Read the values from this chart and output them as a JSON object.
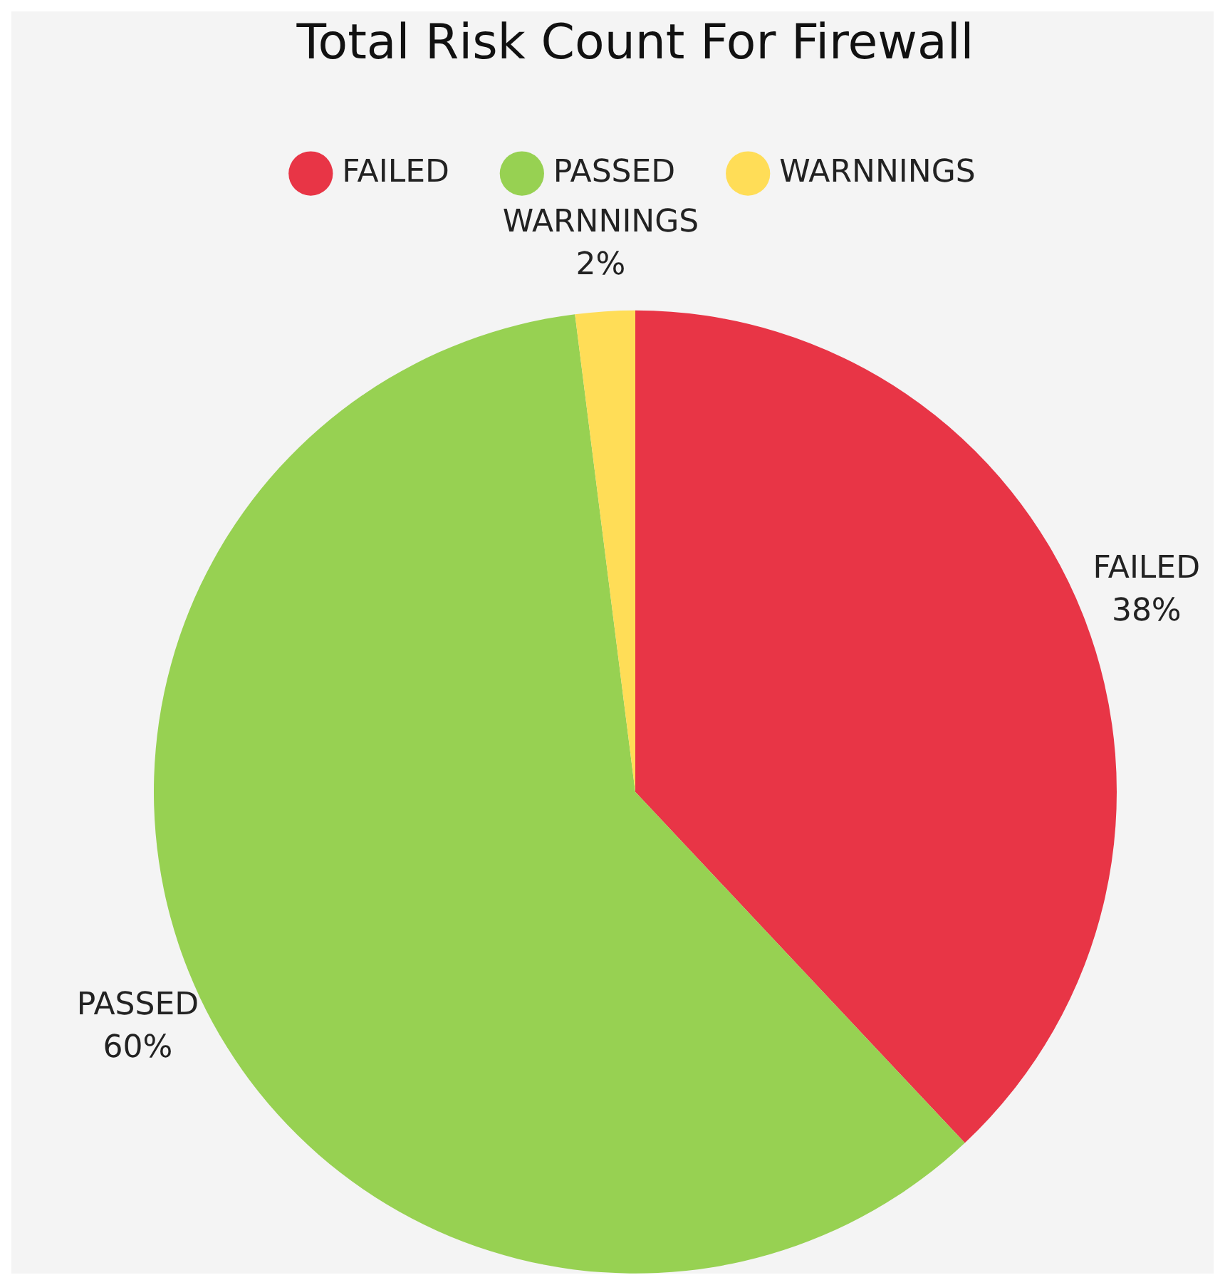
{
  "chart_data": {
    "type": "pie",
    "title": "Total Risk Count For Firewall",
    "categories": [
      "FAILED",
      "PASSED",
      "WARNNINGS"
    ],
    "values": [
      38,
      60,
      2
    ],
    "colors": [
      "#e83546",
      "#97d152",
      "#ffdd57"
    ],
    "value_labels": [
      "38%",
      "60%",
      "2%"
    ],
    "legend": "top"
  }
}
